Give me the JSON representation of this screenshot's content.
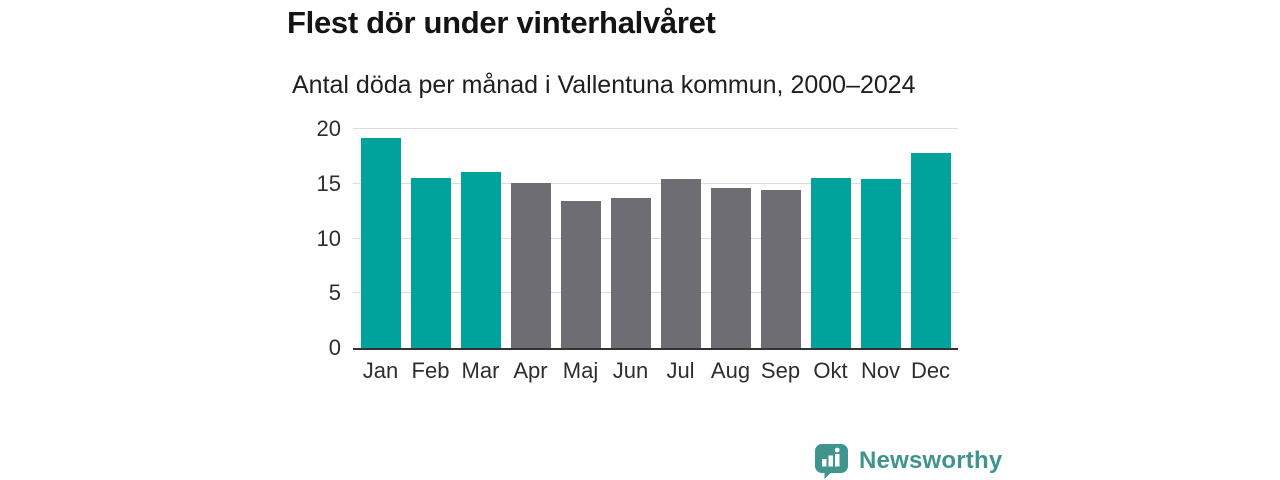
{
  "header": {
    "title": "Flest dör under vinterhalvåret",
    "subtitle": "Antal döda per månad i Vallentuna kommun, 2000–2024"
  },
  "chart_data": {
    "type": "bar",
    "title": "Flest dör under vinterhalvåret",
    "subtitle": "Antal döda per månad i Vallentuna kommun, 2000–2024",
    "categories": [
      "Jan",
      "Feb",
      "Mar",
      "Apr",
      "Maj",
      "Jun",
      "Jul",
      "Aug",
      "Sep",
      "Okt",
      "Nov",
      "Dec"
    ],
    "values": [
      19.2,
      15.5,
      16.1,
      15.1,
      13.4,
      13.7,
      15.4,
      14.6,
      14.4,
      15.5,
      15.4,
      17.8
    ],
    "bar_colors": [
      "teal",
      "teal",
      "teal",
      "gray",
      "gray",
      "gray",
      "gray",
      "gray",
      "gray",
      "teal",
      "teal",
      "teal"
    ],
    "palette": {
      "teal": "#00a39b",
      "gray": "#6e6d73"
    },
    "highlight_meaning": "winter half-year months highlighted in teal",
    "xlabel": "",
    "ylabel": "",
    "ylim": [
      0,
      20
    ],
    "yticks": [
      0,
      5,
      10,
      15,
      20
    ],
    "grid": true,
    "legend": false
  },
  "footer": {
    "brand": "Newsworthy",
    "brand_color": "#3f948d",
    "logo_icon": "speech-bubble-bar-chart-icon"
  }
}
